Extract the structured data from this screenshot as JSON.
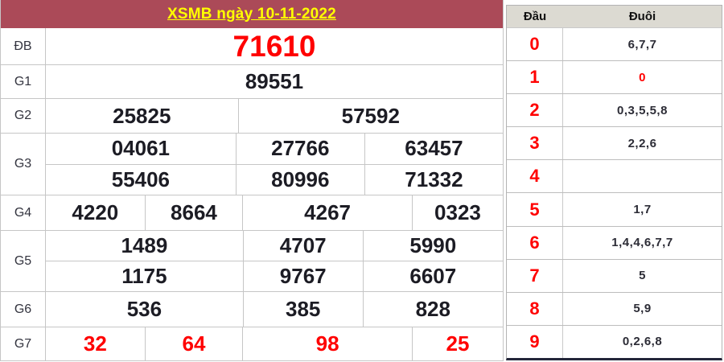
{
  "colors": {
    "title_bar_bg": "#ab4a58",
    "title_text": "#ffff00",
    "accent_red": "#ff0000",
    "panel_header_bg": "#dcdad2",
    "border_grey": "#c6c6c6"
  },
  "results_table": {
    "title": "XSMB ngày 10-11-2022",
    "rows": [
      {
        "label": "ĐB",
        "values": [
          [
            "71610"
          ]
        ]
      },
      {
        "label": "G1",
        "values": [
          [
            "89551"
          ]
        ]
      },
      {
        "label": "G2",
        "values": [
          [
            "25825",
            "57592"
          ]
        ]
      },
      {
        "label": "G3",
        "values": [
          [
            "04061",
            "27766",
            "63457"
          ],
          [
            "55406",
            "80996",
            "71332"
          ]
        ]
      },
      {
        "label": "G4",
        "values": [
          [
            "4220",
            "8664",
            "4267",
            "0323"
          ]
        ]
      },
      {
        "label": "G5",
        "values": [
          [
            "1489",
            "4707",
            "5990"
          ],
          [
            "1175",
            "9767",
            "6607"
          ]
        ]
      },
      {
        "label": "G6",
        "values": [
          [
            "536",
            "385",
            "828"
          ]
        ]
      },
      {
        "label": "G7",
        "values": [
          [
            "32",
            "64",
            "98",
            "25"
          ]
        ]
      }
    ]
  },
  "head_tail_table": {
    "headers": {
      "dau": "Đầu",
      "duoi": "Đuôi"
    },
    "rows": [
      {
        "dau": "0",
        "duoi": "6,7,7",
        "highlight": false
      },
      {
        "dau": "1",
        "duoi": "0",
        "highlight": true
      },
      {
        "dau": "2",
        "duoi": "0,3,5,5,8",
        "highlight": false
      },
      {
        "dau": "3",
        "duoi": "2,2,6",
        "highlight": false
      },
      {
        "dau": "4",
        "duoi": "",
        "highlight": false
      },
      {
        "dau": "5",
        "duoi": "1,7",
        "highlight": false
      },
      {
        "dau": "6",
        "duoi": "1,4,4,6,7,7",
        "highlight": false
      },
      {
        "dau": "7",
        "duoi": "5",
        "highlight": false
      },
      {
        "dau": "8",
        "duoi": "5,9",
        "highlight": false
      },
      {
        "dau": "9",
        "duoi": "0,2,6,8",
        "highlight": false
      }
    ]
  }
}
